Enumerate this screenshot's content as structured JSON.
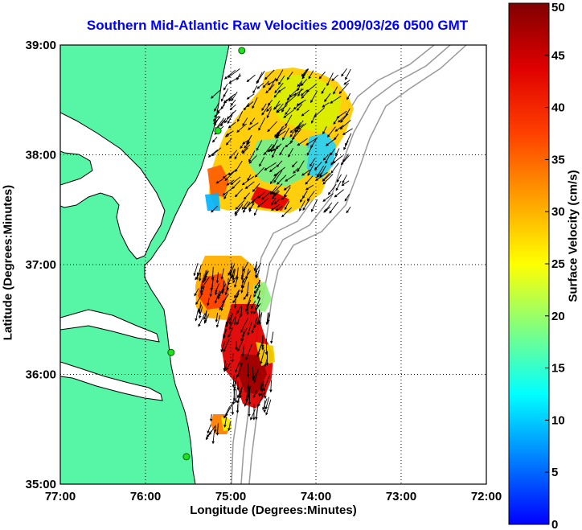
{
  "title": "Southern Mid-Atlantic Raw Velocities 2009/03/26 0500 GMT",
  "map": {
    "xlabel": "Longitude (Degrees:Minutes)",
    "ylabel": "Latitude (Degrees:Minutes)",
    "lon_range": [
      -77,
      -72
    ],
    "lat_range": [
      35,
      39
    ],
    "lon_ticks": [
      "77:00",
      "76:00",
      "75:00",
      "74:00",
      "73:00",
      "72:00"
    ],
    "lat_ticks": [
      "39:00",
      "38:00",
      "37:00",
      "36:00",
      "35:00"
    ],
    "grid": "dotted",
    "land_color": "#57f5a6",
    "water_color": "#ffffff",
    "bathymetry_color": "#9a9a9a"
  },
  "colorbar": {
    "label": "Surface Velocity (cm/s)",
    "range": [
      0,
      50
    ],
    "ticks": [
      "50",
      "45",
      "40",
      "35",
      "30",
      "25",
      "20",
      "15",
      "10",
      "5",
      "0"
    ]
  },
  "chart_data": {
    "type": "heatmap",
    "description_units": "cm/s",
    "regions": [
      {
        "lon": -74.45,
        "lat": 38.05,
        "speed": 20
      },
      {
        "lon": -74.15,
        "lat": 37.95,
        "speed": 12
      },
      {
        "lon": -74.75,
        "lat": 37.6,
        "speed": 42
      },
      {
        "lon": -74.95,
        "lat": 36.7,
        "speed": 33
      },
      {
        "lon": -74.9,
        "lat": 36.0,
        "speed": 45
      },
      {
        "lon": -75.15,
        "lat": 35.65,
        "speed": 30
      }
    ]
  },
  "stations": [
    {
      "lon": -74.87,
      "lat": 38.95
    },
    {
      "lon": -75.15,
      "lat": 38.22
    },
    {
      "lon": -75.7,
      "lat": 36.2
    },
    {
      "lon": -75.52,
      "lat": 35.25
    }
  ]
}
